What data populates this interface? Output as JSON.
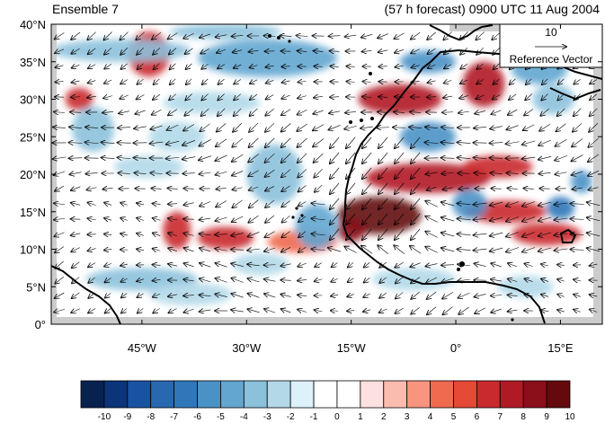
{
  "title": {
    "left": "Ensemble 7",
    "right": "(57 h forecast) 0900 UTC 11 Aug 2004"
  },
  "reference_vector": {
    "magnitude": "10",
    "label": "Reference Vector"
  },
  "axes": {
    "y_ticks": [
      {
        "value": 40,
        "label": "40°N"
      },
      {
        "value": 35,
        "label": "35°N"
      },
      {
        "value": 30,
        "label": "30°N"
      },
      {
        "value": 25,
        "label": "25°N"
      },
      {
        "value": 20,
        "label": "20°N"
      },
      {
        "value": 15,
        "label": "15°N"
      },
      {
        "value": 10,
        "label": "10°N"
      },
      {
        "value": 5,
        "label": "5°N"
      },
      {
        "value": 0,
        "label": "0°"
      }
    ],
    "x_ticks": [
      {
        "value": -45,
        "label": "45°W"
      },
      {
        "value": -30,
        "label": "30°W"
      },
      {
        "value": -15,
        "label": "15°W"
      },
      {
        "value": 0,
        "label": "0°"
      },
      {
        "value": 15,
        "label": "15°E"
      }
    ],
    "lon_range": [
      -58,
      21
    ],
    "lat_range": [
      0,
      40
    ]
  },
  "colorbar": {
    "labels": [
      "-10",
      "-9",
      "-8",
      "-7",
      "-6",
      "-5",
      "-4",
      "-3",
      "-2",
      "-1",
      "0",
      "1",
      "2",
      "3",
      "4",
      "5",
      "6",
      "7",
      "8",
      "9",
      "10"
    ],
    "colors": [
      "#08224f",
      "#0b3578",
      "#1a52a3",
      "#2868b0",
      "#2f77b9",
      "#4a92c6",
      "#63a6d0",
      "#8cc1dc",
      "#b3d9e9",
      "#dcf1fa",
      "#ffffff",
      "#ffffff",
      "#fde0e0",
      "#fbbcb0",
      "#f7957f",
      "#f06a50",
      "#e44a36",
      "#c92a2d",
      "#b01a24",
      "#8a0f1b",
      "#640a0d"
    ]
  },
  "anomaly_blobs": [
    {
      "lon": -44,
      "lat": 36,
      "rx": 3,
      "ry": 3,
      "value": 6
    },
    {
      "lon": -54,
      "lat": 30,
      "rx": 2,
      "ry": 1.5,
      "value": 6
    },
    {
      "lon": -48,
      "lat": 36.5,
      "rx": 10,
      "ry": 1.5,
      "value": -3
    },
    {
      "lon": -27,
      "lat": 35.5,
      "rx": 10,
      "ry": 2.5,
      "value": -4
    },
    {
      "lon": -33,
      "lat": 39,
      "rx": 8,
      "ry": 1,
      "value": -3
    },
    {
      "lon": -35,
      "lat": 29.5,
      "rx": 7,
      "ry": 1.5,
      "value": -2
    },
    {
      "lon": -40,
      "lat": 25,
      "rx": 4,
      "ry": 2,
      "value": -2
    },
    {
      "lon": -52,
      "lat": 26,
      "rx": 3,
      "ry": 3,
      "value": -3
    },
    {
      "lon": -26,
      "lat": 20,
      "rx": 4,
      "ry": 4,
      "value": -3
    },
    {
      "lon": -44,
      "lat": 21,
      "rx": 5,
      "ry": 1.5,
      "value": -2
    },
    {
      "lon": -40,
      "lat": 12.5,
      "rx": 2,
      "ry": 2.5,
      "value": 6
    },
    {
      "lon": -33,
      "lat": 11.5,
      "rx": 4,
      "ry": 1.5,
      "value": 6
    },
    {
      "lon": -22,
      "lat": 11,
      "rx": 5,
      "ry": 1.5,
      "value": 4
    },
    {
      "lon": -28,
      "lat": 8,
      "rx": 4,
      "ry": 1.5,
      "value": -2
    },
    {
      "lon": -45,
      "lat": 6,
      "rx": 8,
      "ry": 1.5,
      "value": -3
    },
    {
      "lon": -38,
      "lat": 4,
      "rx": 6,
      "ry": 1.5,
      "value": -2
    },
    {
      "lon": -20,
      "lat": 13,
      "rx": 3,
      "ry": 3,
      "value": -4
    },
    {
      "lon": -8,
      "lat": 30,
      "rx": 6,
      "ry": 2,
      "value": 7
    },
    {
      "lon": 4,
      "lat": 32,
      "rx": 3,
      "ry": 3,
      "value": 7
    },
    {
      "lon": -4,
      "lat": 35,
      "rx": 4,
      "ry": 1.5,
      "value": -5
    },
    {
      "lon": 12,
      "lat": 34,
      "rx": 4,
      "ry": 2,
      "value": -4
    },
    {
      "lon": 14,
      "lat": 30,
      "rx": 3,
      "ry": 2,
      "value": -3
    },
    {
      "lon": -4,
      "lat": 25,
      "rx": 4,
      "ry": 2,
      "value": -5
    },
    {
      "lon": -4,
      "lat": 19.5,
      "rx": 9,
      "ry": 2,
      "value": 7
    },
    {
      "lon": 6,
      "lat": 21,
      "rx": 5,
      "ry": 1.5,
      "value": 6
    },
    {
      "lon": -11,
      "lat": 14.5,
      "rx": 6,
      "ry": 2.5,
      "value": 9
    },
    {
      "lon": -15,
      "lat": 12.5,
      "rx": 2,
      "ry": 1.5,
      "value": 8
    },
    {
      "lon": 7,
      "lat": 15,
      "rx": 6,
      "ry": 1.5,
      "value": 6
    },
    {
      "lon": 13,
      "lat": 12,
      "rx": 5,
      "ry": 1.5,
      "value": 6
    },
    {
      "lon": 2,
      "lat": 16,
      "rx": 2.5,
      "ry": 2,
      "value": -5
    },
    {
      "lon": 15,
      "lat": 15.5,
      "rx": 2,
      "ry": 1.5,
      "value": -6
    },
    {
      "lon": 18,
      "lat": 19,
      "rx": 1.5,
      "ry": 1.5,
      "value": -5
    },
    {
      "lon": -6,
      "lat": 6,
      "rx": 6,
      "ry": 1.5,
      "value": -2
    },
    {
      "lon": 10,
      "lat": 5,
      "rx": 4,
      "ry": 1.5,
      "value": -2
    }
  ]
}
